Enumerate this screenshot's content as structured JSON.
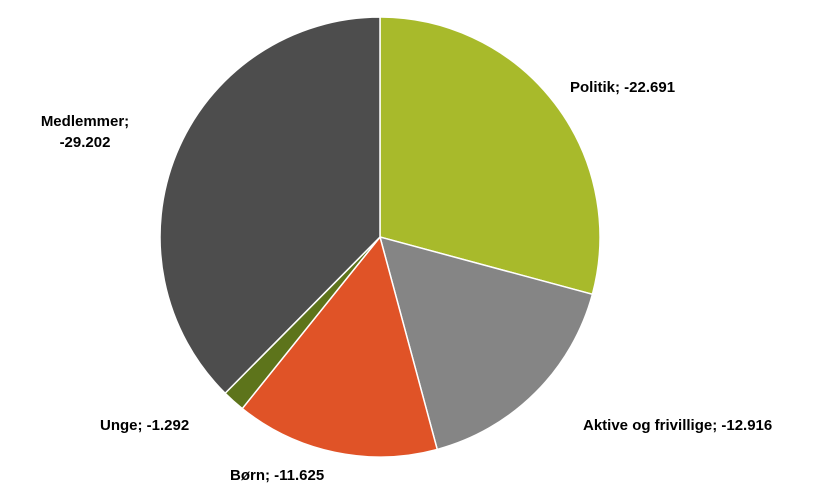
{
  "chart_data": {
    "type": "pie",
    "title": "",
    "series": [
      {
        "values": [
          {
            "label": "Politik",
            "value": -22.691,
            "display": "-22.691",
            "color": "#a8ba2b"
          },
          {
            "label": "Aktive og frivillige",
            "value": -12.916,
            "display": "-12.916",
            "color": "#858585"
          },
          {
            "label": "Børn",
            "value": -11.625,
            "display": "-11.625",
            "color": "#e05327"
          },
          {
            "label": "Unge",
            "value": -1.292,
            "display": "-1.292",
            "color": "#5d741b"
          },
          {
            "label": "Medlemmer",
            "value": -29.202,
            "display": "-29.202",
            "color": "#4d4d4d"
          }
        ]
      }
    ],
    "start_angle_deg": 0,
    "direction": "clockwise",
    "legend": "none",
    "data_label_format": "{label}; {value}"
  }
}
